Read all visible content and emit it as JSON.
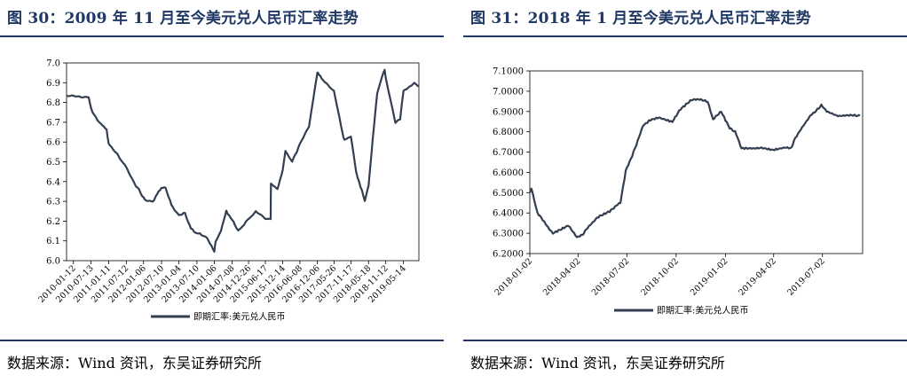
{
  "left": {
    "title": "图 30：2009 年 11 月至今美元兑人民币汇率走势",
    "source": "数据来源：Wind 资讯，东吴证券研究所",
    "chart_data": {
      "type": "line",
      "title": "",
      "xlabel": "",
      "ylabel": "",
      "ylim": [
        6.0,
        7.0
      ],
      "yticks": [
        "7.0",
        "6.9",
        "6.8",
        "6.7",
        "6.6",
        "6.5",
        "6.4",
        "6.3",
        "6.2",
        "6.1",
        "6.0"
      ],
      "ytick_values": [
        7.0,
        6.9,
        6.8,
        6.7,
        6.6,
        6.5,
        6.4,
        6.3,
        6.2,
        6.1,
        6.0
      ],
      "xticks": [
        "2010-01-12",
        "2010-07-13",
        "2011-01-11",
        "2011-07-12",
        "2012-01-06",
        "2012-07-10",
        "2013-01-04",
        "2013-07-10",
        "2014-01-06",
        "2014-07-08",
        "2014-12-26",
        "2015-06-17",
        "2015-12-14",
        "2016-06-08",
        "2016-12-06",
        "2017-05-26",
        "2017-11-17",
        "2018-05-18",
        "2018-11-12",
        "2019-05-14"
      ],
      "legend": "top-none",
      "grid": false,
      "series": [
        {
          "name": "即期汇率:美元兑人民币",
          "color": "#333f50",
          "x": [
            "2009-11-02",
            "2010-06-18",
            "2010-07-13",
            "2010-09-15",
            "2010-12-20",
            "2011-01-11",
            "2011-03-10",
            "2011-07-12",
            "2011-10-20",
            "2012-01-06",
            "2012-02-10",
            "2012-04-10",
            "2012-07-10",
            "2012-08-20",
            "2012-10-20",
            "2013-01-04",
            "2013-03-10",
            "2013-05-10",
            "2013-07-10",
            "2013-10-10",
            "2014-01-06",
            "2014-01-20",
            "2014-03-15",
            "2014-05-10",
            "2014-07-08",
            "2014-09-10",
            "2014-12-26",
            "2015-03-10",
            "2015-06-17",
            "2015-08-11",
            "2015-08-14",
            "2015-10-20",
            "2015-12-14",
            "2016-01-10",
            "2016-03-20",
            "2016-06-08",
            "2016-09-10",
            "2016-12-06",
            "2016-12-20",
            "2017-03-20",
            "2017-05-26",
            "2017-08-20",
            "2017-09-10",
            "2017-11-17",
            "2018-01-10",
            "2018-04-10",
            "2018-05-18",
            "2018-08-15",
            "2018-10-31",
            "2018-11-12",
            "2019-02-20",
            "2019-04-10",
            "2019-05-14",
            "2019-07-10",
            "2019-09-02",
            "2019-10-15"
          ],
          "values": [
            6.83,
            6.83,
            6.77,
            6.71,
            6.66,
            6.59,
            6.56,
            6.47,
            6.38,
            6.32,
            6.3,
            6.3,
            6.37,
            6.37,
            6.28,
            6.23,
            6.24,
            6.16,
            6.14,
            6.12,
            6.05,
            6.1,
            6.15,
            6.25,
            6.21,
            6.15,
            6.21,
            6.25,
            6.21,
            6.21,
            6.39,
            6.36,
            6.46,
            6.56,
            6.5,
            6.59,
            6.68,
            6.95,
            6.94,
            6.89,
            6.86,
            6.65,
            6.61,
            6.63,
            6.45,
            6.3,
            6.38,
            6.85,
            6.97,
            6.92,
            6.7,
            6.72,
            6.86,
            6.88,
            6.9,
            6.88
          ]
        }
      ]
    }
  },
  "right": {
    "title": "图 31：2018 年 1 月至今美元兑人民币汇率走势",
    "source": "数据来源：Wind 资讯，东吴证券研究所",
    "chart_data": {
      "type": "line",
      "title": "",
      "xlabel": "",
      "ylabel": "",
      "ylim": [
        6.2,
        7.1
      ],
      "yticks": [
        "7.1000",
        "7.0000",
        "6.9000",
        "6.8000",
        "6.7000",
        "6.6000",
        "6.5000",
        "6.4000",
        "6.3000",
        "6.2000"
      ],
      "ytick_values": [
        7.1,
        7.0,
        6.9,
        6.8,
        6.7,
        6.6,
        6.5,
        6.4,
        6.3,
        6.2
      ],
      "xticks": [
        "2018-01-02",
        "2018-04-02",
        "2018-07-02",
        "2018-10-02",
        "2019-01-02",
        "2019-04-02",
        "2019-07-02"
      ],
      "legend": "bottom",
      "grid": false,
      "series": [
        {
          "name": "即期汇率:美元兑人民币",
          "color": "#333f50",
          "x": [
            "2018-01-02",
            "2018-01-05",
            "2018-01-16",
            "2018-02-08",
            "2018-02-14",
            "2018-03-15",
            "2018-03-31",
            "2018-04-10",
            "2018-04-20",
            "2018-05-10",
            "2018-05-31",
            "2018-06-20",
            "2018-06-30",
            "2018-07-12",
            "2018-08-01",
            "2018-08-15",
            "2018-08-31",
            "2018-09-25",
            "2018-10-10",
            "2018-10-31",
            "2018-11-10",
            "2018-11-30",
            "2018-12-10",
            "2018-12-25",
            "2019-01-10",
            "2019-01-20",
            "2019-02-01",
            "2019-02-20",
            "2019-03-10",
            "2019-04-01",
            "2019-04-20",
            "2019-05-05",
            "2019-05-10",
            "2019-05-20",
            "2019-06-10",
            "2019-06-30",
            "2019-07-10",
            "2019-07-31",
            "2019-08-31",
            "2019-09-10"
          ],
          "values": [
            6.5,
            6.52,
            6.4,
            6.32,
            6.3,
            6.34,
            6.28,
            6.29,
            6.33,
            6.38,
            6.41,
            6.45,
            6.61,
            6.68,
            6.83,
            6.86,
            6.87,
            6.85,
            6.91,
            6.96,
            6.96,
            6.95,
            6.86,
            6.9,
            6.82,
            6.8,
            6.72,
            6.72,
            6.72,
            6.71,
            6.72,
            6.72,
            6.76,
            6.8,
            6.88,
            6.93,
            6.9,
            6.88,
            6.88,
            6.88
          ]
        }
      ]
    }
  }
}
